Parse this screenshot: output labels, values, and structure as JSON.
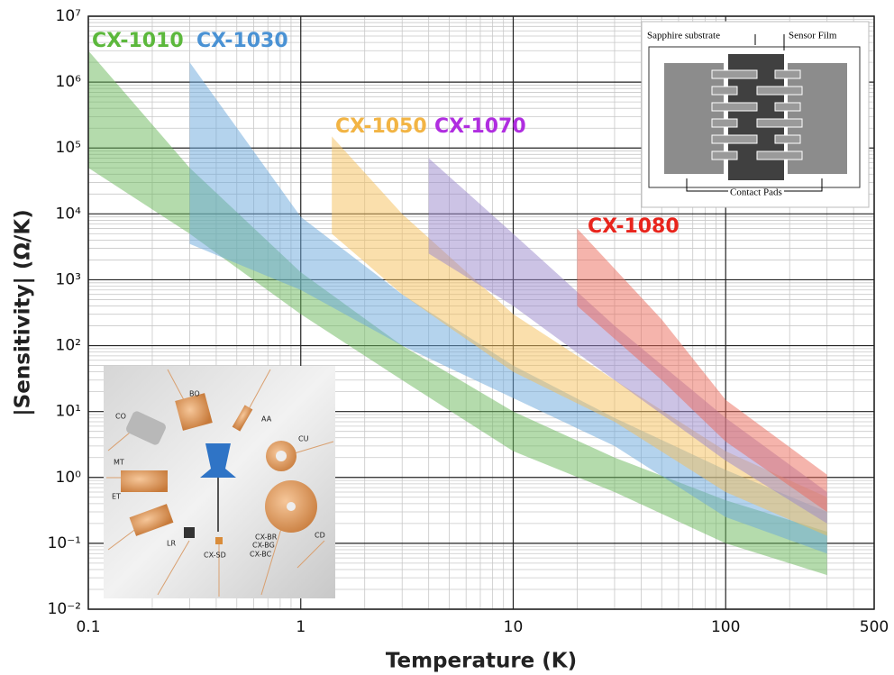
{
  "chart_data": {
    "type": "range-area",
    "x_label": "Temperature (K)",
    "y_label": "|Sensitivity| (Ω/K)",
    "xscale": "log",
    "yscale": "log",
    "grid": true,
    "minor_grid": true,
    "xlim": [
      0.1,
      500
    ],
    "xticks": [
      0.1,
      1,
      10,
      100,
      500
    ],
    "ylim": [
      0.01,
      10000000
    ],
    "yticks": [
      {
        "value": 0.01,
        "label": "10⁻²"
      },
      {
        "value": 0.1,
        "label": "10⁻¹"
      },
      {
        "value": 1,
        "label": "10⁰"
      },
      {
        "value": 10,
        "label": "10¹"
      },
      {
        "value": 100,
        "label": "10²"
      },
      {
        "value": 1000,
        "label": "10³"
      },
      {
        "value": 10000,
        "label": "10⁴"
      },
      {
        "value": 100000,
        "label": "10⁵"
      },
      {
        "value": 1000000,
        "label": "10⁶"
      },
      {
        "value": 10000000,
        "label": "10⁷"
      }
    ],
    "series": [
      {
        "name": "CX-1010",
        "color": "#6ab85a",
        "label_color": "#5cb83c",
        "x": [
          0.1,
          0.3,
          1,
          3,
          10,
          30,
          100,
          300
        ],
        "upper": [
          3000000,
          50000,
          1300,
          100,
          10,
          2,
          0.45,
          0.15
        ],
        "lower": [
          50000,
          5000,
          300,
          30,
          2.5,
          0.6,
          0.1,
          0.033
        ]
      },
      {
        "name": "CX-1030",
        "color": "#6aa8dc",
        "label_color": "#4a92d4",
        "x": [
          0.3,
          1,
          3,
          10,
          30,
          100,
          300
        ],
        "upper": [
          2000000,
          9000,
          600,
          50,
          8,
          1.3,
          0.3
        ],
        "lower": [
          3500,
          700,
          100,
          16,
          3,
          0.25,
          0.07
        ]
      },
      {
        "name": "CX-1050",
        "color": "#f6c05a",
        "label_color": "#f2b444",
        "x": [
          1.4,
          3,
          10,
          30,
          100,
          300
        ],
        "upper": [
          150000,
          10000,
          300,
          30,
          2.5,
          0.5
        ],
        "lower": [
          5000,
          600,
          40,
          7,
          0.6,
          0.13
        ]
      },
      {
        "name": "CX-1070",
        "color": "#9a88cc",
        "label_color": "#b02ee0",
        "x": [
          4,
          10,
          30,
          100,
          300
        ],
        "upper": [
          70000,
          5000,
          200,
          8,
          0.6
        ],
        "lower": [
          2500,
          400,
          30,
          1.8,
          0.2
        ]
      },
      {
        "name": "CX-1080",
        "color": "#ec6a5a",
        "label_color": "#e8241c",
        "x": [
          20,
          50,
          100,
          300
        ],
        "upper": [
          6000,
          250,
          15,
          1.1
        ],
        "lower": [
          400,
          30,
          3.5,
          0.3
        ]
      }
    ]
  },
  "diagram_labels": {
    "substrate": "Sapphire substrate",
    "film": "Sensor Film",
    "pads": "Contact Pads"
  },
  "photo_labels": [
    "BO",
    "AA",
    "CO",
    "CU",
    "MT",
    "ET",
    "LR",
    "CX-SD",
    "CX-BR",
    "CX-BG",
    "CX-BC",
    "CD"
  ]
}
